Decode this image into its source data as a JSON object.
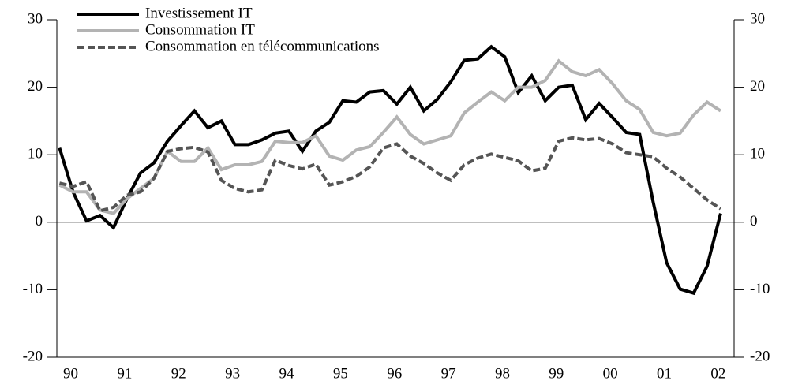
{
  "chart_data": {
    "type": "line",
    "x": [
      1990,
      1990.25,
      1990.5,
      1990.75,
      1991,
      1991.25,
      1991.5,
      1991.75,
      1992,
      1992.25,
      1992.5,
      1992.75,
      1993,
      1993.25,
      1993.5,
      1993.75,
      1994,
      1994.25,
      1994.5,
      1994.75,
      1995,
      1995.25,
      1995.5,
      1995.75,
      1996,
      1996.25,
      1996.5,
      1996.75,
      1997,
      1997.25,
      1997.5,
      1997.75,
      1998,
      1998.25,
      1998.5,
      1998.75,
      1999,
      1999.25,
      1999.5,
      1999.75,
      2000,
      2000.25,
      2000.5,
      2000.75,
      2001,
      2001.25,
      2001.5,
      2001.75,
      2002,
      2002.25
    ],
    "series": [
      {
        "name": "Investissement IT",
        "color": "#000000",
        "dash": false,
        "values": [
          11,
          4.5,
          0.2,
          1,
          -0.8,
          3.5,
          7.3,
          8.8,
          12,
          14.3,
          16.5,
          14,
          15,
          11.5,
          11.5,
          12.2,
          13.2,
          13.5,
          10.5,
          13.5,
          14.8,
          18,
          17.8,
          19.3,
          19.5,
          17.5,
          20,
          16.5,
          18.2,
          20.8,
          24,
          24.2,
          26,
          24.5,
          19.2,
          21.7,
          18,
          20,
          20.3,
          15.2,
          17.6,
          15.5,
          13.3,
          13,
          3,
          -6,
          -9.9,
          -10.5,
          -6.5,
          1.3
        ]
      },
      {
        "name": "Consommation IT",
        "color": "#b3b3b3",
        "dash": false,
        "values": [
          5.5,
          4.5,
          4.5,
          1.8,
          1.3,
          3.5,
          5,
          6.5,
          10.5,
          9,
          9,
          11,
          7.8,
          8.5,
          8.5,
          9,
          12,
          11.8,
          11.8,
          12.8,
          9.8,
          9.2,
          10.7,
          11.2,
          13.3,
          15.6,
          13,
          11.6,
          12.2,
          12.8,
          16.2,
          17.8,
          19.3,
          18,
          20,
          20,
          21,
          23.9,
          22.3,
          21.7,
          22.6,
          20.5,
          18,
          16.7,
          13.3,
          12.8,
          13.2,
          15.9,
          17.8,
          16.5
        ]
      },
      {
        "name": "Consommation en télécommunications",
        "color": "#555555",
        "dash": true,
        "values": [
          5.8,
          5.3,
          6,
          1.7,
          2.2,
          4,
          4.5,
          6.5,
          10.5,
          10.9,
          11.1,
          10.4,
          6.2,
          5,
          4.5,
          4.8,
          9.2,
          8.4,
          7.9,
          8.6,
          5.5,
          6,
          6.8,
          8.2,
          11,
          11.6,
          9.8,
          8.7,
          7.3,
          6.2,
          8.5,
          9.5,
          10.1,
          9.6,
          9.1,
          7.6,
          8,
          12,
          12.5,
          12.2,
          12.4,
          11.6,
          10.3,
          10,
          9.7,
          8,
          6.7,
          5,
          3.3,
          2
        ]
      }
    ],
    "xlim": [
      1989.95,
      2002.5
    ],
    "xticks": [
      {
        "value": 1990.25,
        "label": "90"
      },
      {
        "value": 1991.25,
        "label": "91"
      },
      {
        "value": 1992.25,
        "label": "92"
      },
      {
        "value": 1993.25,
        "label": "93"
      },
      {
        "value": 1994.25,
        "label": "94"
      },
      {
        "value": 1995.25,
        "label": "95"
      },
      {
        "value": 1996.25,
        "label": "96"
      },
      {
        "value": 1997.25,
        "label": "97"
      },
      {
        "value": 1998.25,
        "label": "98"
      },
      {
        "value": 1999.25,
        "label": "99"
      },
      {
        "value": 2000.25,
        "label": "00"
      },
      {
        "value": 2001.25,
        "label": "01"
      },
      {
        "value": 2002.25,
        "label": "02"
      }
    ],
    "ylim": [
      -20,
      30
    ],
    "yticks": [
      -20,
      -10,
      0,
      10,
      20,
      30
    ],
    "y2lim": [
      -20,
      30
    ],
    "y2ticks": [
      -20,
      -10,
      0,
      10,
      20,
      30
    ],
    "zero_line": true,
    "legend": "upper left"
  }
}
